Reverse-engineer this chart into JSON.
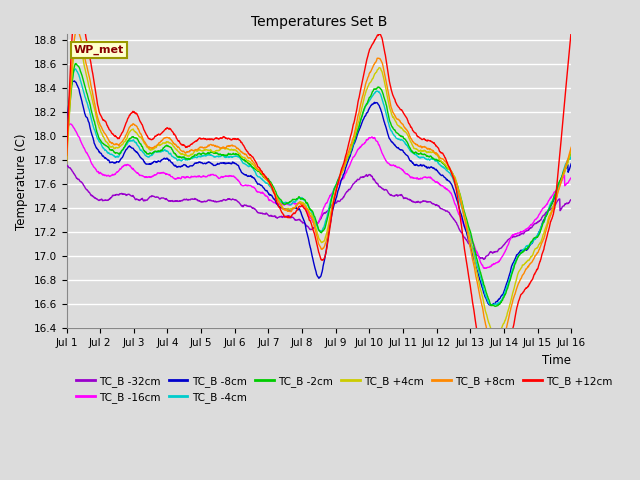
{
  "title": "Temperatures Set B",
  "xlabel": "Time",
  "ylabel": "Temperature (C)",
  "ylim": [
    16.4,
    18.85
  ],
  "xlim": [
    0,
    15
  ],
  "xtick_labels": [
    "Jul 1",
    "Jul 2",
    "Jul 3",
    "Jul 4",
    "Jul 5",
    "Jul 6",
    "Jul 7",
    "Jul 8",
    "Jul 9",
    "Jul 10",
    "Jul 11",
    "Jul 12",
    "Jul 13",
    "Jul 14",
    "Jul 15",
    "Jul 16"
  ],
  "ytick_values": [
    16.4,
    16.6,
    16.8,
    17.0,
    17.2,
    17.4,
    17.6,
    17.8,
    18.0,
    18.2,
    18.4,
    18.6,
    18.8
  ],
  "wp_met_label": "WP_met",
  "wp_met_bg": "#FFFFCC",
  "wp_met_border": "#999900",
  "wp_met_text": "#880000",
  "background_color": "#DCDCDC",
  "grid_color": "#FFFFFF",
  "series": [
    {
      "label": "TC_B -32cm",
      "color": "#9900CC"
    },
    {
      "label": "TC_B -16cm",
      "color": "#FF00FF"
    },
    {
      "label": "TC_B -8cm",
      "color": "#0000CC"
    },
    {
      "label": "TC_B -4cm",
      "color": "#00CCCC"
    },
    {
      "label": "TC_B -2cm",
      "color": "#00CC00"
    },
    {
      "label": "TC_B +4cm",
      "color": "#CCCC00"
    },
    {
      "label": "TC_B +8cm",
      "color": "#FF8800"
    },
    {
      "label": "TC_B +12cm",
      "color": "#FF0000"
    }
  ],
  "n_points": 1500,
  "random_seed": 42,
  "figsize": [
    6.4,
    4.8
  ],
  "dpi": 100
}
